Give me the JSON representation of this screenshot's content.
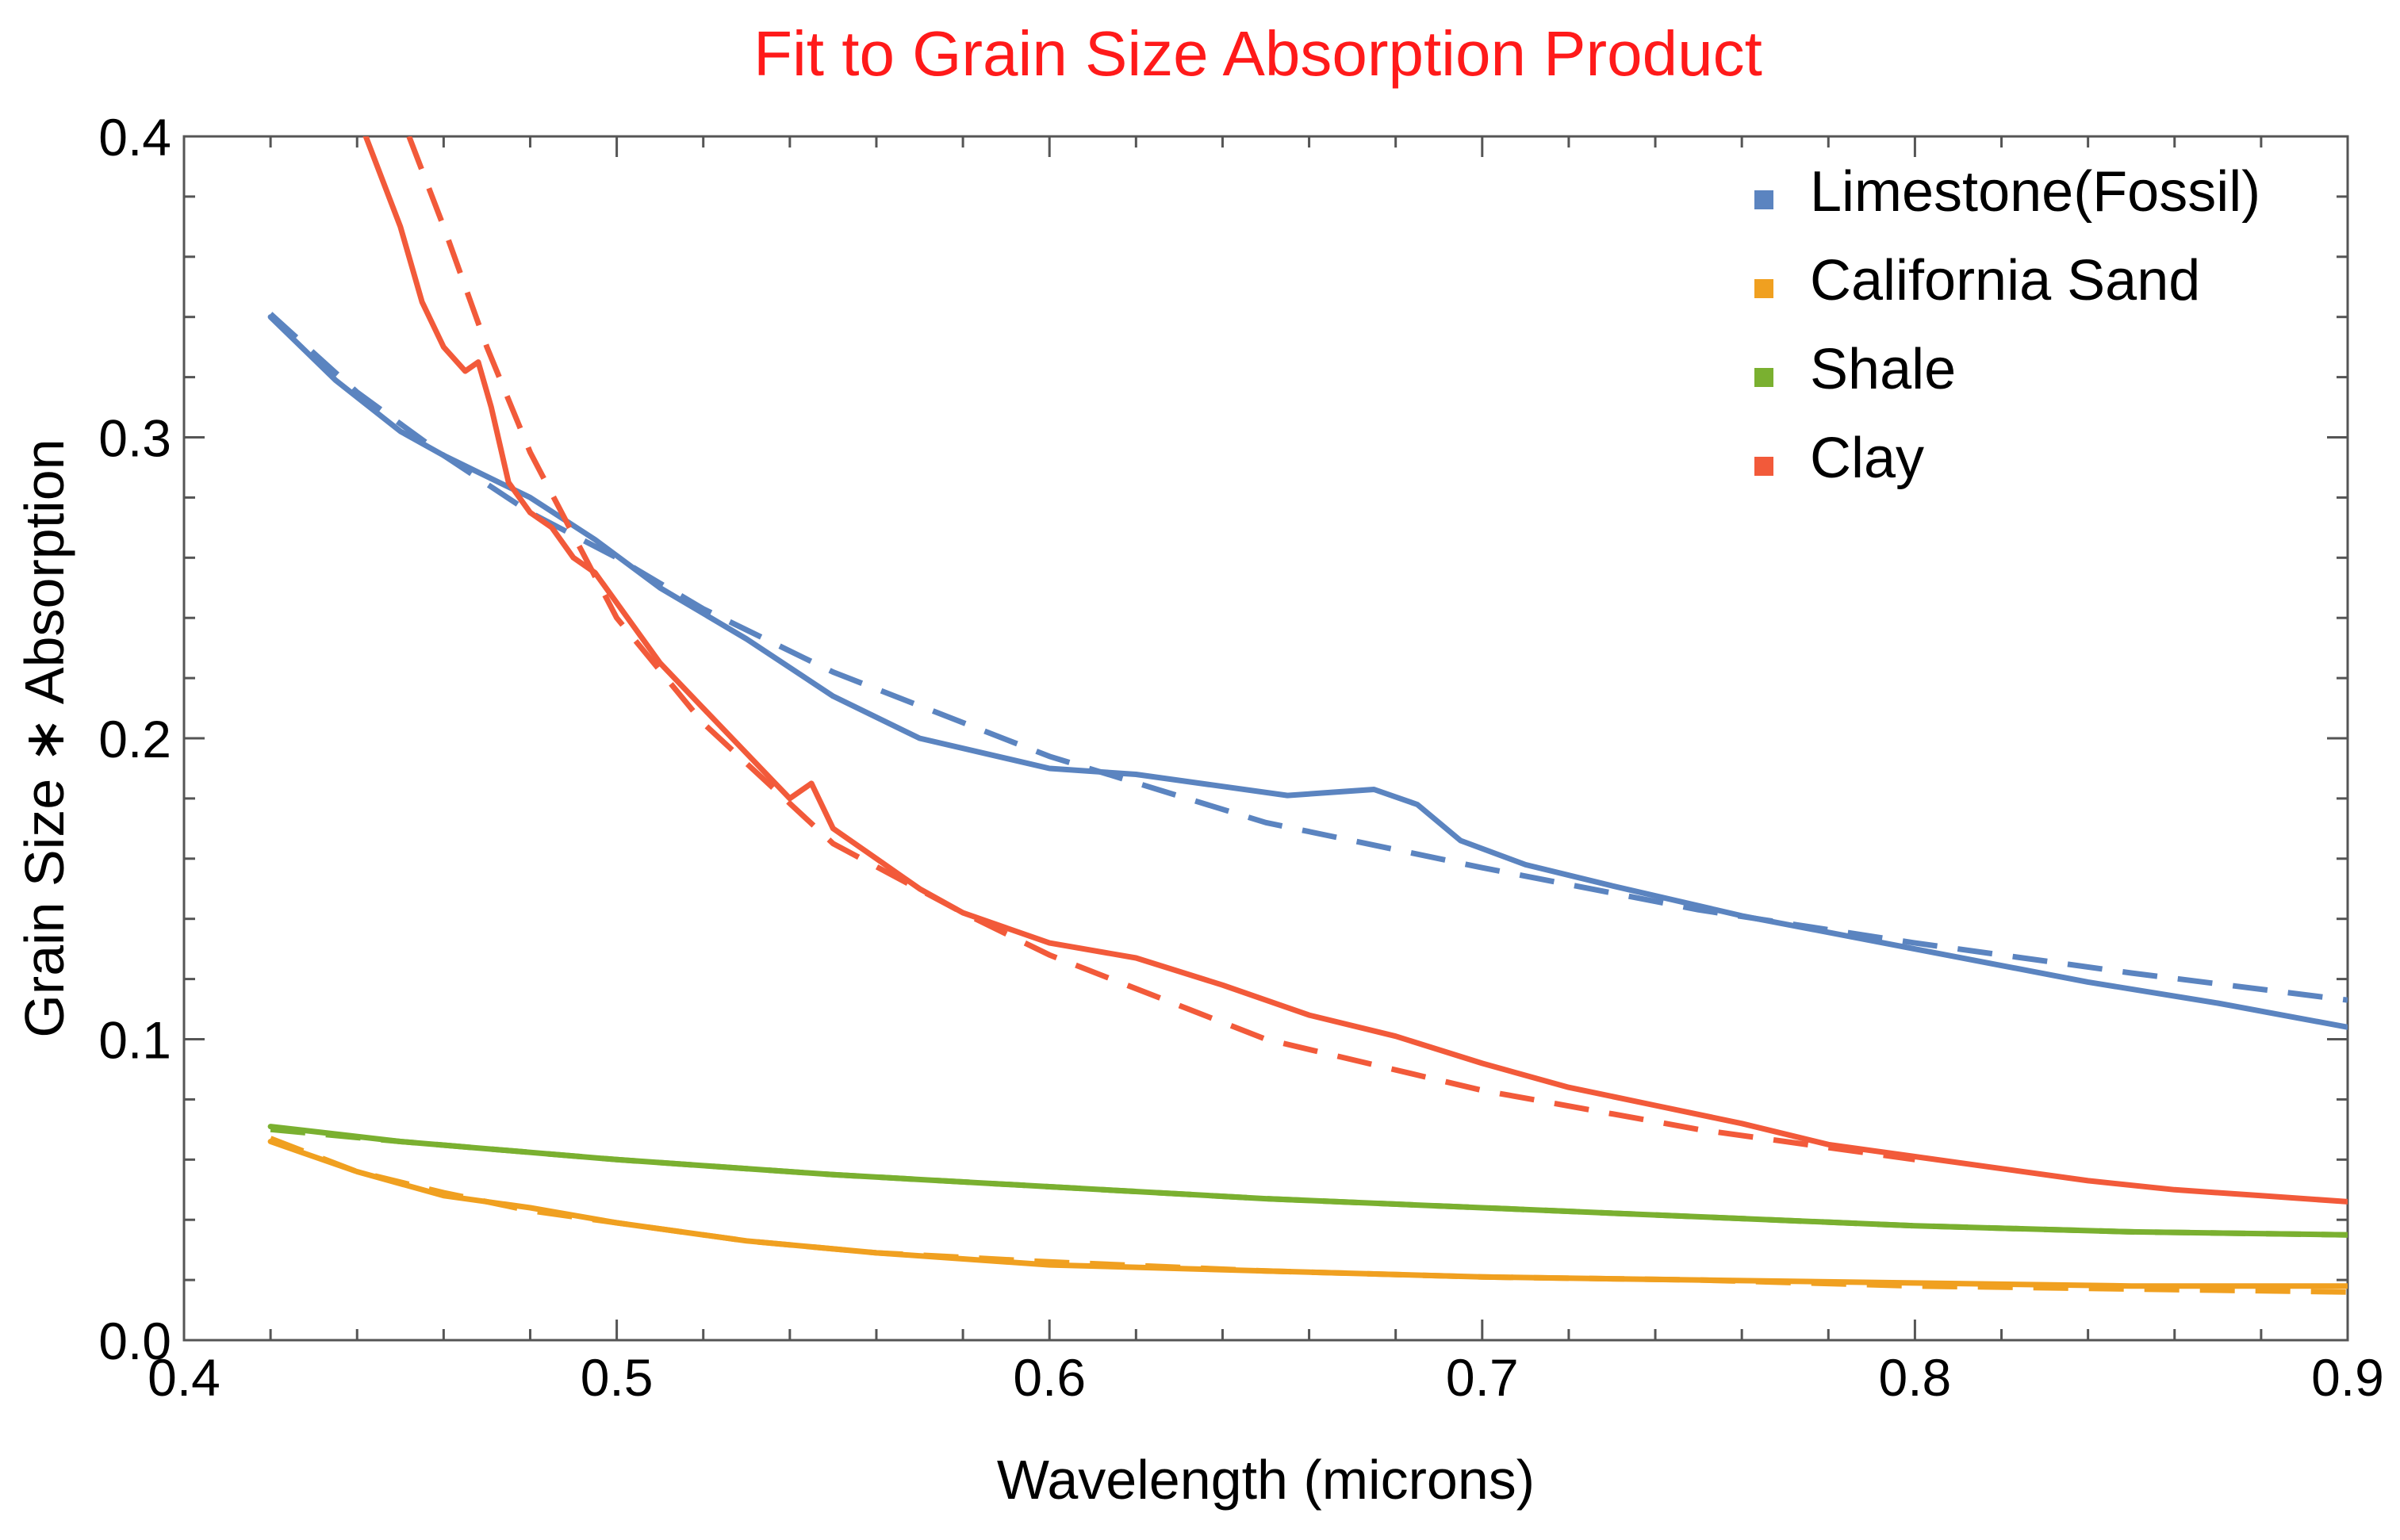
{
  "chart_data": {
    "type": "line",
    "title": "Fit to Grain Size Absorption Product",
    "title_color": "#ff1a1a",
    "xlabel": "Wavelength (microns)",
    "ylabel": "Grain Size ∗ Absorption",
    "xlim": [
      0.4,
      0.9
    ],
    "ylim": [
      0.0,
      0.4
    ],
    "x_ticks": [
      "0.4",
      "0.5",
      "0.6",
      "0.7",
      "0.8",
      "0.9"
    ],
    "y_ticks": [
      "0.0",
      "0.1",
      "0.2",
      "0.3",
      "0.4"
    ],
    "legend_position": "top-right",
    "series": [
      {
        "name": "Limestone(Fossil)",
        "color": "#5b84c0",
        "measured": [
          [
            0.42,
            0.34
          ],
          [
            0.435,
            0.319
          ],
          [
            0.45,
            0.302
          ],
          [
            0.46,
            0.294
          ],
          [
            0.48,
            0.28
          ],
          [
            0.495,
            0.266
          ],
          [
            0.51,
            0.25
          ],
          [
            0.53,
            0.233
          ],
          [
            0.55,
            0.214
          ],
          [
            0.57,
            0.2
          ],
          [
            0.6,
            0.19
          ],
          [
            0.62,
            0.188
          ],
          [
            0.64,
            0.184
          ],
          [
            0.655,
            0.181
          ],
          [
            0.665,
            0.182
          ],
          [
            0.675,
            0.183
          ],
          [
            0.685,
            0.178
          ],
          [
            0.695,
            0.166
          ],
          [
            0.71,
            0.158
          ],
          [
            0.73,
            0.151
          ],
          [
            0.76,
            0.141
          ],
          [
            0.8,
            0.13
          ],
          [
            0.84,
            0.119
          ],
          [
            0.87,
            0.112
          ],
          [
            0.9,
            0.104
          ]
        ],
        "fit": [
          [
            0.42,
            0.341
          ],
          [
            0.44,
            0.315
          ],
          [
            0.46,
            0.294
          ],
          [
            0.48,
            0.275
          ],
          [
            0.5,
            0.26
          ],
          [
            0.52,
            0.243
          ],
          [
            0.55,
            0.222
          ],
          [
            0.6,
            0.194
          ],
          [
            0.65,
            0.172
          ],
          [
            0.7,
            0.157
          ],
          [
            0.75,
            0.143
          ],
          [
            0.8,
            0.132
          ],
          [
            0.85,
            0.122
          ],
          [
            0.9,
            0.113
          ]
        ]
      },
      {
        "name": "California Sand",
        "color": "#f0a020",
        "measured": [
          [
            0.42,
            0.066
          ],
          [
            0.44,
            0.056
          ],
          [
            0.46,
            0.048
          ],
          [
            0.48,
            0.044
          ],
          [
            0.5,
            0.039
          ],
          [
            0.53,
            0.033
          ],
          [
            0.56,
            0.029
          ],
          [
            0.6,
            0.025
          ],
          [
            0.65,
            0.023
          ],
          [
            0.7,
            0.021
          ],
          [
            0.75,
            0.02
          ],
          [
            0.8,
            0.019
          ],
          [
            0.85,
            0.018
          ],
          [
            0.9,
            0.018
          ]
        ],
        "fit": [
          [
            0.42,
            0.067
          ],
          [
            0.44,
            0.056
          ],
          [
            0.46,
            0.049
          ],
          [
            0.48,
            0.043
          ],
          [
            0.5,
            0.039
          ],
          [
            0.53,
            0.033
          ],
          [
            0.56,
            0.029
          ],
          [
            0.6,
            0.026
          ],
          [
            0.65,
            0.023
          ],
          [
            0.7,
            0.021
          ],
          [
            0.75,
            0.02
          ],
          [
            0.8,
            0.018
          ],
          [
            0.85,
            0.017
          ],
          [
            0.9,
            0.016
          ]
        ]
      },
      {
        "name": "Shale",
        "color": "#7ab030",
        "measured": [
          [
            0.42,
            0.071
          ],
          [
            0.45,
            0.066
          ],
          [
            0.5,
            0.06
          ],
          [
            0.55,
            0.055
          ],
          [
            0.6,
            0.051
          ],
          [
            0.65,
            0.047
          ],
          [
            0.7,
            0.044
          ],
          [
            0.75,
            0.041
          ],
          [
            0.8,
            0.038
          ],
          [
            0.85,
            0.036
          ],
          [
            0.9,
            0.035
          ]
        ],
        "fit": [
          [
            0.42,
            0.07
          ],
          [
            0.45,
            0.066
          ],
          [
            0.5,
            0.06
          ],
          [
            0.55,
            0.055
          ],
          [
            0.6,
            0.051
          ],
          [
            0.65,
            0.047
          ],
          [
            0.7,
            0.044
          ],
          [
            0.75,
            0.041
          ],
          [
            0.8,
            0.038
          ],
          [
            0.85,
            0.036
          ],
          [
            0.9,
            0.035
          ]
        ]
      },
      {
        "name": "Clay",
        "color": "#f25a3a",
        "measured": [
          [
            0.442,
            0.4
          ],
          [
            0.45,
            0.37
          ],
          [
            0.455,
            0.345
          ],
          [
            0.46,
            0.33
          ],
          [
            0.465,
            0.322
          ],
          [
            0.468,
            0.325
          ],
          [
            0.471,
            0.31
          ],
          [
            0.475,
            0.285
          ],
          [
            0.48,
            0.275
          ],
          [
            0.485,
            0.27
          ],
          [
            0.49,
            0.26
          ],
          [
            0.495,
            0.255
          ],
          [
            0.5,
            0.245
          ],
          [
            0.51,
            0.225
          ],
          [
            0.52,
            0.21
          ],
          [
            0.53,
            0.195
          ],
          [
            0.54,
            0.18
          ],
          [
            0.545,
            0.185
          ],
          [
            0.55,
            0.17
          ],
          [
            0.56,
            0.16
          ],
          [
            0.57,
            0.15
          ],
          [
            0.58,
            0.142
          ],
          [
            0.59,
            0.137
          ],
          [
            0.6,
            0.132
          ],
          [
            0.62,
            0.127
          ],
          [
            0.64,
            0.118
          ],
          [
            0.66,
            0.108
          ],
          [
            0.68,
            0.101
          ],
          [
            0.7,
            0.092
          ],
          [
            0.72,
            0.084
          ],
          [
            0.74,
            0.078
          ],
          [
            0.76,
            0.072
          ],
          [
            0.78,
            0.065
          ],
          [
            0.8,
            0.061
          ],
          [
            0.82,
            0.057
          ],
          [
            0.84,
            0.053
          ],
          [
            0.86,
            0.05
          ],
          [
            0.88,
            0.048
          ],
          [
            0.9,
            0.046
          ]
        ],
        "fit": [
          [
            0.452,
            0.4
          ],
          [
            0.46,
            0.37
          ],
          [
            0.47,
            0.33
          ],
          [
            0.48,
            0.295
          ],
          [
            0.5,
            0.24
          ],
          [
            0.52,
            0.205
          ],
          [
            0.55,
            0.165
          ],
          [
            0.58,
            0.142
          ],
          [
            0.6,
            0.128
          ],
          [
            0.65,
            0.1
          ],
          [
            0.7,
            0.083
          ],
          [
            0.75,
            0.07
          ],
          [
            0.8,
            0.06
          ]
        ]
      }
    ]
  }
}
